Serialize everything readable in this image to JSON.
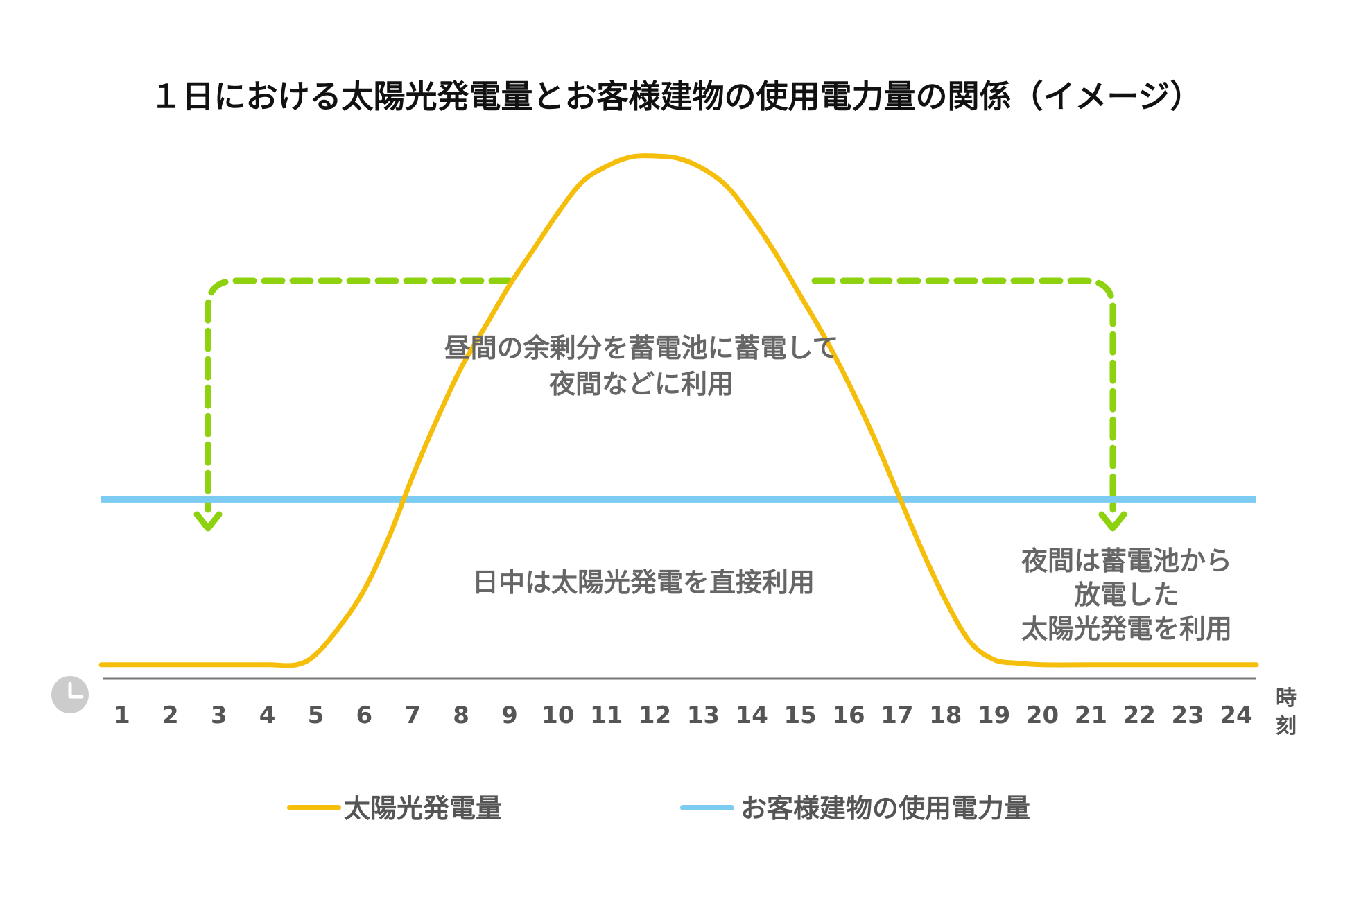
{
  "chart_data": {
    "type": "line",
    "title": "１日における太陽光発電量とお客様建物の使用電力量の関係（イメージ）",
    "x_unit": "時刻",
    "x": [
      1,
      2,
      3,
      4,
      5,
      6,
      7,
      8,
      9,
      10,
      11,
      12,
      13,
      14,
      15,
      16,
      17,
      18,
      19,
      20,
      21,
      22,
      23,
      24
    ],
    "xlim": [
      1,
      24
    ],
    "ylim": [
      0,
      100
    ],
    "grid": false,
    "legend_position": "bottom",
    "series": [
      {
        "name": "太陽光発電量",
        "color": "#F5BE0B",
        "curve": "smooth",
        "points": [
          [
            1,
            1.5
          ],
          [
            2,
            1.5
          ],
          [
            3,
            1.5
          ],
          [
            4,
            1.5
          ],
          [
            4.6,
            1.5
          ],
          [
            5,
            3.5
          ],
          [
            5.5,
            9
          ],
          [
            6,
            16
          ],
          [
            6.5,
            26
          ],
          [
            7,
            38
          ],
          [
            7.5,
            49
          ],
          [
            8,
            59
          ],
          [
            8.5,
            67
          ],
          [
            9,
            75
          ],
          [
            9.5,
            82
          ],
          [
            10,
            89
          ],
          [
            10.5,
            95
          ],
          [
            11,
            98
          ],
          [
            11.5,
            99.8
          ],
          [
            12,
            100
          ],
          [
            12.5,
            99.5
          ],
          [
            13,
            97.5
          ],
          [
            13.5,
            94
          ],
          [
            14,
            88
          ],
          [
            14.5,
            81
          ],
          [
            15,
            73
          ],
          [
            15.5,
            65
          ],
          [
            16,
            56
          ],
          [
            16.5,
            46
          ],
          [
            17,
            35
          ],
          [
            17.5,
            24
          ],
          [
            18,
            14
          ],
          [
            18.5,
            6
          ],
          [
            19,
            2.5
          ],
          [
            19.5,
            1.8
          ],
          [
            20,
            1.5
          ],
          [
            21,
            1.5
          ],
          [
            22,
            1.5
          ],
          [
            23,
            1.5
          ],
          [
            24,
            1.5
          ]
        ]
      },
      {
        "name": "お客様建物の使用電力量",
        "color": "#7CCBF2",
        "points": [
          [
            1,
            33.5
          ],
          [
            24,
            33.5
          ]
        ]
      }
    ],
    "annotations": [
      {
        "id": "storage",
        "lines": [
          "昼間の余剰分を蓄電池に蓄電して",
          "夜間などに利用"
        ]
      },
      {
        "id": "daytime",
        "lines": [
          "日中は太陽光発電を直接利用"
        ]
      },
      {
        "id": "night",
        "lines": [
          "夜間は蓄電池から",
          "放電した",
          "太陽光発電を利用"
        ]
      }
    ],
    "arrow_color": "#8ED10F",
    "arrow_style": "dashed",
    "clock_icon": "clock-icon",
    "clock_color": "#CCCCCC",
    "axis_color": "#777777"
  }
}
